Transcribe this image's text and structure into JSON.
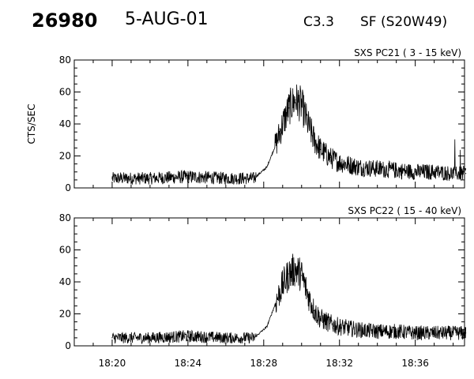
{
  "header": {
    "id": "26980",
    "date": "5-AUG-01",
    "flare_class": "C3.3",
    "flare_info": "SF (S20W49)"
  },
  "chart_data": [
    {
      "type": "line",
      "title": "SXS PC21  ( 3 - 15 keV)",
      "ylabel": "CTS/SEC",
      "xlabel": "",
      "ylim": [
        0,
        80
      ],
      "yticks": [
        0,
        20,
        40,
        60,
        80
      ],
      "xlim_minutes": [
        18.0,
        38.6
      ],
      "xticks": [
        "18:20",
        "18:24",
        "18:28",
        "18:32",
        "18:36"
      ],
      "series": [
        {
          "x": [
            "18:20:00",
            "18:22:00",
            "18:24:00",
            "18:26:00",
            "18:27:30",
            "18:28:10",
            "18:28:40",
            "18:29:00",
            "18:29:20",
            "18:29:40",
            "18:30:00",
            "18:30:20",
            "18:30:40",
            "18:31:00",
            "18:31:30",
            "18:32:00",
            "18:33:00",
            "18:34:00",
            "18:35:00",
            "18:36:00",
            "18:37:00",
            "18:38:00",
            "18:38:40"
          ],
          "values": [
            6,
            6,
            7,
            6,
            6,
            13,
            28,
            40,
            50,
            55,
            52,
            40,
            30,
            24,
            19,
            16,
            13,
            12,
            11,
            10,
            10,
            9,
            9
          ]
        }
      ]
    },
    {
      "type": "line",
      "title": "SXS PC22  ( 15 - 40 keV)",
      "ylabel": "",
      "xlabel": "",
      "ylim": [
        0,
        80
      ],
      "yticks": [
        0,
        20,
        40,
        60,
        80
      ],
      "xlim_minutes": [
        18.0,
        38.6
      ],
      "xticks": [
        "18:20",
        "18:24",
        "18:28",
        "18:32",
        "18:36"
      ],
      "series": [
        {
          "x": [
            "18:20:00",
            "18:22:00",
            "18:24:00",
            "18:26:00",
            "18:27:30",
            "18:28:10",
            "18:28:40",
            "18:29:00",
            "18:29:20",
            "18:29:40",
            "18:30:00",
            "18:30:20",
            "18:30:40",
            "18:31:00",
            "18:31:30",
            "18:32:00",
            "18:33:00",
            "18:34:00",
            "18:35:00",
            "18:36:00",
            "18:37:00",
            "18:38:00",
            "18:38:40"
          ],
          "values": [
            5,
            5,
            6,
            5,
            5,
            12,
            28,
            38,
            45,
            48,
            44,
            32,
            22,
            17,
            14,
            12,
            10,
            9,
            9,
            8,
            8,
            8,
            8
          ]
        }
      ]
    }
  ]
}
